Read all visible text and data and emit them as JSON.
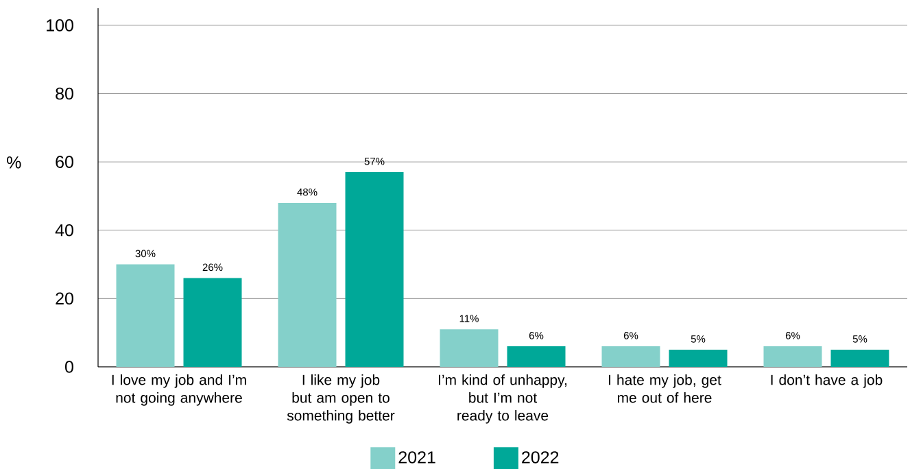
{
  "chart_data": {
    "type": "bar",
    "ylabel": "%",
    "categories": [
      "I love my job and I’m not going anywhere",
      "I like my job but am open to something better",
      "I’m kind of unhappy, but I’m not ready to leave",
      "I hate my job, get me out of here",
      "I don’t have a job"
    ],
    "series": [
      {
        "name": "2021",
        "color": "#84d0ca",
        "values": [
          30,
          48,
          11,
          6,
          6
        ],
        "value_labels": [
          "30%",
          "48%",
          "11%",
          "6%",
          "6%"
        ]
      },
      {
        "name": "2022",
        "color": "#00a898",
        "values": [
          26,
          57,
          6,
          5,
          5
        ],
        "value_labels": [
          "26%",
          "57%",
          "6%",
          "5%",
          "5%"
        ]
      }
    ],
    "ylim": [
      0,
      105
    ],
    "yticks": [
      0,
      20,
      40,
      60,
      80,
      100
    ],
    "grid": "y",
    "legend": "bottom"
  }
}
